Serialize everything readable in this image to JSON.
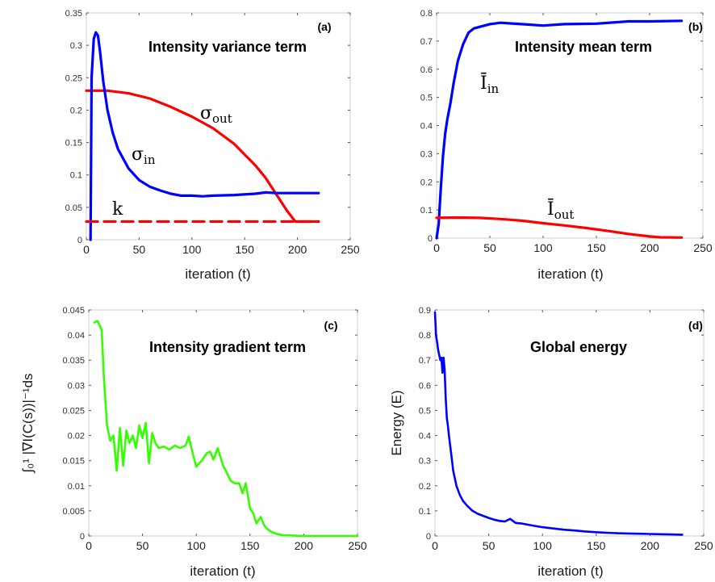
{
  "chart_data": [
    {
      "panel": "(a)",
      "type": "line",
      "title": "Intensity variance term",
      "xlabel": "iteration (t)",
      "ylabel": "",
      "xlim": [
        0,
        250
      ],
      "ylim": [
        0,
        0.35
      ],
      "xticks": [
        0,
        50,
        100,
        150,
        200,
        250
      ],
      "yticks": [
        0,
        0.05,
        0.1,
        0.15,
        0.2,
        0.25,
        0.3,
        0.35
      ],
      "ytick_labels": [
        "0",
        "0.05",
        "0.1",
        "0.15",
        "0.2",
        "0.25",
        "0.3",
        "0.35"
      ],
      "grid": false,
      "series": [
        {
          "name": "σout",
          "label_main": "σ",
          "label_sub": "out",
          "color": "#ff0000",
          "style": "solid",
          "x": [
            0,
            20,
            40,
            60,
            80,
            100,
            120,
            140,
            160,
            170,
            180,
            190,
            198,
            220
          ],
          "y": [
            0.23,
            0.23,
            0.226,
            0.218,
            0.205,
            0.19,
            0.172,
            0.148,
            0.115,
            0.095,
            0.07,
            0.045,
            0.028,
            0.028
          ]
        },
        {
          "name": "σin",
          "label_main": "σ",
          "label_sub": "in",
          "color": "#0000ff",
          "style": "solid",
          "x": [
            4,
            5,
            7,
            9,
            11,
            13,
            16,
            20,
            25,
            30,
            40,
            50,
            60,
            70,
            80,
            90,
            100,
            110,
            120,
            140,
            160,
            170,
            180,
            200,
            220
          ],
          "y": [
            0,
            0.25,
            0.31,
            0.32,
            0.315,
            0.29,
            0.245,
            0.2,
            0.165,
            0.14,
            0.11,
            0.092,
            0.082,
            0.076,
            0.071,
            0.068,
            0.068,
            0.067,
            0.068,
            0.069,
            0.071,
            0.073,
            0.072,
            0.072,
            0.072
          ]
        },
        {
          "name": "k",
          "label_main": "k",
          "label_sub": "",
          "color": "#ff0000",
          "style": "dashed",
          "x": [
            0,
            220
          ],
          "y": [
            0.028,
            0.028
          ]
        }
      ]
    },
    {
      "panel": "(b)",
      "type": "line",
      "title": "Intensity mean term",
      "xlabel": "iteration (t)",
      "ylabel": "",
      "xlim": [
        0,
        250
      ],
      "ylim": [
        0,
        0.8
      ],
      "xticks": [
        0,
        50,
        100,
        150,
        200,
        250
      ],
      "yticks": [
        0,
        0.1,
        0.2,
        0.3,
        0.4,
        0.5,
        0.6,
        0.7,
        0.8
      ],
      "ytick_labels": [
        "0",
        "0.1",
        "0.2",
        "0.3",
        "0.4",
        "0.5",
        "0.6",
        "0.7",
        "0.8"
      ],
      "grid": false,
      "series": [
        {
          "name": "Īin",
          "label_main": "Ī",
          "label_sub": "in",
          "color": "#0000ff",
          "style": "solid",
          "x": [
            0,
            2,
            4,
            6,
            8,
            10,
            13,
            16,
            20,
            25,
            30,
            35,
            40,
            50,
            60,
            80,
            100,
            120,
            150,
            180,
            200,
            230
          ],
          "y": [
            0,
            0.05,
            0.18,
            0.29,
            0.37,
            0.42,
            0.48,
            0.55,
            0.63,
            0.69,
            0.73,
            0.745,
            0.75,
            0.76,
            0.765,
            0.76,
            0.755,
            0.76,
            0.762,
            0.77,
            0.77,
            0.772
          ]
        },
        {
          "name": "Īout",
          "label_main": "Ī",
          "label_sub": "out",
          "color": "#ff0000",
          "style": "solid",
          "x": [
            0,
            20,
            40,
            60,
            80,
            100,
            120,
            140,
            160,
            180,
            200,
            210,
            230
          ],
          "y": [
            0.072,
            0.073,
            0.072,
            0.068,
            0.062,
            0.053,
            0.045,
            0.036,
            0.026,
            0.015,
            0.006,
            0.003,
            0.002
          ]
        }
      ]
    },
    {
      "panel": "(c)",
      "type": "line",
      "title": "Intensity gradient term",
      "xlabel": "iteration (t)",
      "ylabel": "∫₀¹ |∇I(C(s))|⁻¹ds",
      "xlim": [
        0,
        250
      ],
      "ylim": [
        0,
        0.045
      ],
      "xticks": [
        0,
        50,
        100,
        150,
        200,
        250
      ],
      "yticks": [
        0,
        0.005,
        0.01,
        0.015,
        0.02,
        0.025,
        0.03,
        0.035,
        0.04,
        0.045
      ],
      "ytick_labels": [
        "0",
        "0.005",
        "0.01",
        "0.015",
        "0.02",
        "0.025",
        "0.03",
        "0.035",
        "0.04",
        "0.045"
      ],
      "grid": false,
      "series": [
        {
          "name": "",
          "color": "#33ff00",
          "style": "solid",
          "x": [
            5,
            8,
            10,
            12,
            14,
            17,
            20,
            23,
            26,
            29,
            32,
            35,
            38,
            41,
            44,
            47,
            50,
            53,
            56,
            59,
            62,
            65,
            70,
            75,
            80,
            85,
            90,
            93,
            96,
            100,
            105,
            110,
            113,
            116,
            120,
            125,
            128,
            132,
            136,
            140,
            143,
            146,
            150,
            153,
            156,
            160,
            163,
            166,
            170,
            175,
            180,
            190,
            200,
            220,
            250
          ],
          "y": [
            0.0425,
            0.0428,
            0.042,
            0.041,
            0.032,
            0.022,
            0.019,
            0.02,
            0.013,
            0.0215,
            0.014,
            0.021,
            0.0185,
            0.02,
            0.0175,
            0.022,
            0.0195,
            0.0225,
            0.0145,
            0.0205,
            0.0185,
            0.0175,
            0.0178,
            0.0172,
            0.018,
            0.0175,
            0.018,
            0.0198,
            0.017,
            0.0138,
            0.015,
            0.0165,
            0.0168,
            0.0152,
            0.0175,
            0.014,
            0.0128,
            0.011,
            0.0105,
            0.0105,
            0.0085,
            0.0105,
            0.0055,
            0.0045,
            0.0025,
            0.0038,
            0.0022,
            0.0014,
            0.0008,
            0.0004,
            0.0002,
            0.0001,
            0,
            0,
            0
          ]
        }
      ]
    },
    {
      "panel": "(d)",
      "type": "line",
      "title": "Global energy",
      "xlabel": "iteration (t)",
      "ylabel": "Energy (E)",
      "xlim": [
        0,
        250
      ],
      "ylim": [
        0,
        0.9
      ],
      "xticks": [
        0,
        50,
        100,
        150,
        200,
        250
      ],
      "yticks": [
        0,
        0.1,
        0.2,
        0.3,
        0.4,
        0.5,
        0.6,
        0.7,
        0.8,
        0.9
      ],
      "ytick_labels": [
        "0",
        "0.1",
        "0.2",
        "0.3",
        "0.4",
        "0.5",
        "0.6",
        "0.7",
        "0.8",
        "0.9"
      ],
      "grid": false,
      "series": [
        {
          "name": "",
          "color": "#0000ff",
          "style": "solid",
          "x": [
            0,
            1,
            2,
            3,
            4,
            5,
            6,
            7,
            8,
            9,
            10,
            11,
            12,
            13,
            15,
            17,
            20,
            23,
            26,
            30,
            35,
            40,
            45,
            50,
            55,
            60,
            65,
            70,
            75,
            80,
            90,
            100,
            110,
            120,
            130,
            140,
            150,
            160,
            170,
            180,
            190,
            200,
            210,
            220,
            230
          ],
          "y": [
            0.89,
            0.8,
            0.77,
            0.74,
            0.72,
            0.7,
            0.71,
            0.65,
            0.71,
            0.66,
            0.55,
            0.47,
            0.44,
            0.4,
            0.33,
            0.26,
            0.2,
            0.165,
            0.14,
            0.12,
            0.1,
            0.088,
            0.08,
            0.072,
            0.065,
            0.06,
            0.058,
            0.068,
            0.052,
            0.05,
            0.042,
            0.035,
            0.03,
            0.025,
            0.022,
            0.018,
            0.015,
            0.013,
            0.011,
            0.01,
            0.009,
            0.008,
            0.007,
            0.006,
            0.005
          ]
        }
      ]
    }
  ]
}
